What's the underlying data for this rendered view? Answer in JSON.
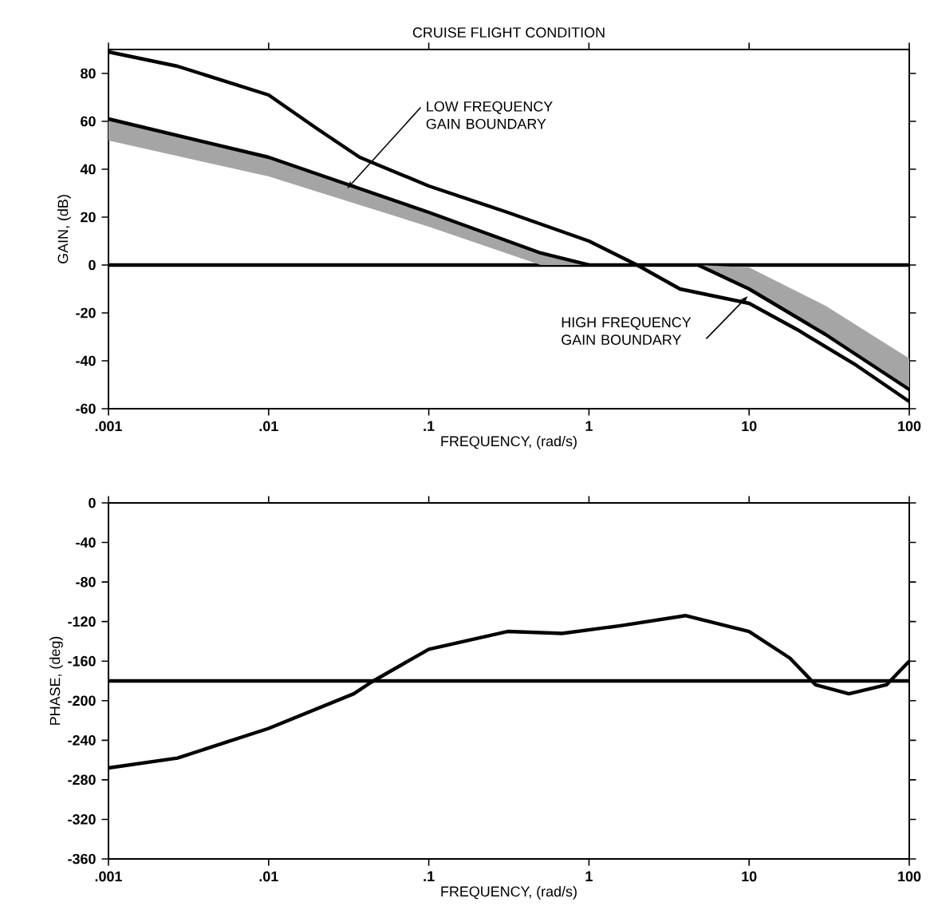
{
  "chart_data": [
    {
      "type": "line",
      "title": "CRUISE FLIGHT CONDITION",
      "xlabel": "FREQUENCY, (rad/s)",
      "ylabel": "GAIN, (dB)",
      "log": "x",
      "xlim": [
        0.001,
        100
      ],
      "ylim": [
        -60,
        90
      ],
      "xticks": [
        {
          "value": 0.001,
          "label": ".001"
        },
        {
          "value": 0.01,
          "label": ".01"
        },
        {
          "value": 0.1,
          "label": ".1"
        },
        1,
        10,
        100
      ],
      "yticks": [
        -60,
        -40,
        -20,
        0,
        20,
        40,
        60,
        80
      ],
      "series": [
        {
          "color": "#000000",
          "x": [
            0.001,
            0.0027,
            0.01,
            0.02,
            0.037,
            0.1,
            0.31,
            1,
            2,
            3.7,
            10,
            20,
            47,
            100
          ],
          "values": [
            89,
            83,
            71,
            57,
            45,
            33,
            22,
            10,
            0,
            -10,
            -16,
            -27,
            -42,
            -57
          ]
        },
        {
          "color": "#000000",
          "x": [
            0.001,
            0.01,
            0.1,
            0.5,
            1
          ],
          "values": [
            61,
            45,
            22,
            5,
            0
          ],
          "lower": [
            52,
            37,
            16,
            0,
            0
          ],
          "upper": [
            61,
            45,
            22,
            5,
            0
          ]
        },
        {
          "color": "#000000",
          "x": [
            4.8,
            10,
            30,
            100
          ],
          "values": [
            0,
            -10,
            -29,
            -52
          ],
          "lower": [
            0,
            -10,
            -29,
            -52
          ],
          "upper": [
            0,
            -1,
            -17,
            -39
          ]
        }
      ],
      "ref_lines": [
        {
          "axis": "y",
          "value": 0
        }
      ],
      "annotations": [
        {
          "text": "LOW FREQUENCY GAIN BOUNDARY",
          "x": 0.031,
          "y": 32
        },
        {
          "text": "HIGH FREQUENCY GAIN BOUNDARY",
          "x": 9.8,
          "y": -13
        }
      ]
    },
    {
      "type": "line",
      "xlabel": "FREQUENCY, (rad/s)",
      "ylabel": "PHASE, (deg)",
      "log": "x",
      "xlim": [
        0.001,
        100
      ],
      "ylim": [
        -360,
        0
      ],
      "xticks": [
        {
          "value": 0.001,
          "label": ".001"
        },
        {
          "value": 0.01,
          "label": ".01"
        },
        {
          "value": 0.1,
          "label": ".1"
        },
        1,
        10,
        100
      ],
      "yticks": [
        -360,
        -320,
        -280,
        -240,
        -200,
        -160,
        -120,
        -80,
        -40,
        0
      ],
      "series": [
        {
          "color": "#000000",
          "x": [
            0.001,
            0.0027,
            0.01,
            0.034,
            0.044,
            0.1,
            0.31,
            0.68,
            1.6,
            4.0,
            10,
            18,
            26,
            42,
            72,
            100
          ],
          "values": [
            -268,
            -258,
            -228,
            -193,
            -181,
            -148,
            -130,
            -132,
            -124,
            -114,
            -130,
            -157,
            -184,
            -193,
            -184,
            -160
          ]
        }
      ],
      "ref_lines": [
        {
          "axis": "y",
          "value": -180
        }
      ]
    }
  ]
}
